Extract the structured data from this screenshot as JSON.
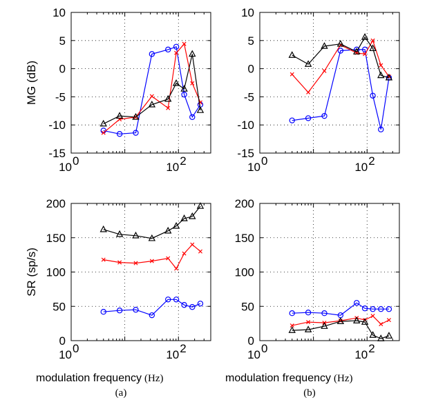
{
  "figure": {
    "x_label_main": "modulation frequency",
    "x_label_unit": "(Hz)",
    "captions": [
      "(a)",
      "(b)"
    ],
    "colors": {
      "blue": "#0000ff",
      "red": "#ff0000",
      "black": "#000000"
    },
    "markers": {
      "blue": "circle",
      "red": "x-cross",
      "black": "triangle"
    }
  },
  "chart_data": [
    {
      "type": "line",
      "panel": "(a)",
      "xscale": "log",
      "xlim": [
        1,
        400
      ],
      "ylim": [
        -15,
        10
      ],
      "ylabel": "MG (dB)",
      "yticks": [
        -15,
        -10,
        -5,
        0,
        5,
        10
      ],
      "xticks": [
        {
          "base": "10",
          "exp": "0"
        },
        {
          "base": "10",
          "exp": "2"
        }
      ],
      "grid": "dotted",
      "series": [
        {
          "color": "blue",
          "marker": "circle",
          "x": [
            4,
            8,
            16,
            32,
            64,
            91,
            128,
            181,
            256
          ],
          "y": [
            -11.0,
            -11.6,
            -11.4,
            2.6,
            3.4,
            3.9,
            -4.6,
            -8.6,
            -6.4
          ]
        },
        {
          "color": "red",
          "marker": "x",
          "x": [
            4,
            8,
            16,
            32,
            64,
            91,
            128,
            181,
            256
          ],
          "y": [
            -11.4,
            -9.0,
            -8.6,
            -4.9,
            -7.0,
            2.8,
            4.4,
            -2.6,
            -6.0
          ]
        },
        {
          "color": "black",
          "marker": "triangle",
          "x": [
            4,
            8,
            16,
            32,
            64,
            91,
            128,
            181,
            256
          ],
          "y": [
            -9.8,
            -8.4,
            -8.6,
            -6.4,
            -5.4,
            -2.6,
            -3.6,
            2.6,
            -7.4
          ]
        }
      ]
    },
    {
      "type": "line",
      "panel": "(b)",
      "xscale": "log",
      "xlim": [
        1,
        400
      ],
      "ylim": [
        -15,
        10
      ],
      "ylabel": "",
      "yticks": [
        -15,
        -10,
        -5,
        0,
        5,
        10
      ],
      "xticks": [
        {
          "base": "10",
          "exp": "0"
        },
        {
          "base": "10",
          "exp": "2"
        }
      ],
      "grid": "dotted",
      "series": [
        {
          "color": "blue",
          "marker": "circle",
          "x": [
            4,
            8,
            16,
            32,
            64,
            91,
            128,
            181,
            256
          ],
          "y": [
            -9.2,
            -8.8,
            -8.4,
            3.2,
            3.4,
            3.4,
            -4.8,
            -10.8,
            -1.6
          ]
        },
        {
          "color": "red",
          "marker": "x",
          "x": [
            4,
            8,
            16,
            32,
            64,
            91,
            128,
            181,
            256
          ],
          "y": [
            -1.0,
            -4.2,
            -0.4,
            4.2,
            2.8,
            2.6,
            5.0,
            0.6,
            -1.4
          ]
        },
        {
          "color": "black",
          "marker": "triangle",
          "x": [
            4,
            8,
            16,
            32,
            64,
            91,
            128,
            181,
            256
          ],
          "y": [
            2.4,
            0.8,
            4.0,
            4.4,
            3.0,
            5.6,
            3.6,
            -1.2,
            -1.6
          ]
        }
      ]
    },
    {
      "type": "line",
      "panel": "(a)",
      "xscale": "log",
      "xlim": [
        1,
        400
      ],
      "ylim": [
        0,
        200
      ],
      "ylabel": "SR (sp/s)",
      "yticks": [
        0,
        50,
        100,
        150,
        200
      ],
      "xticks": [
        {
          "base": "10",
          "exp": "0"
        },
        {
          "base": "10",
          "exp": "2"
        }
      ],
      "grid": "dotted",
      "series": [
        {
          "color": "blue",
          "marker": "circle",
          "x": [
            4,
            8,
            16,
            32,
            64,
            91,
            128,
            181,
            256
          ],
          "y": [
            42,
            44,
            45,
            37,
            60,
            60,
            52,
            49,
            54
          ]
        },
        {
          "color": "red",
          "marker": "x",
          "x": [
            4,
            8,
            16,
            32,
            64,
            91,
            128,
            181,
            256
          ],
          "y": [
            118,
            114,
            113,
            116,
            120,
            105,
            127,
            140,
            130
          ]
        },
        {
          "color": "black",
          "marker": "triangle",
          "x": [
            4,
            8,
            16,
            32,
            64,
            91,
            128,
            181,
            256
          ],
          "y": [
            162,
            155,
            153,
            149,
            160,
            167,
            178,
            181,
            196
          ]
        }
      ]
    },
    {
      "type": "line",
      "panel": "(b)",
      "xscale": "log",
      "xlim": [
        1,
        400
      ],
      "ylim": [
        0,
        200
      ],
      "ylabel": "",
      "yticks": [
        0,
        50,
        100,
        150,
        200
      ],
      "xticks": [
        {
          "base": "10",
          "exp": "0"
        },
        {
          "base": "10",
          "exp": "2"
        }
      ],
      "grid": "dotted",
      "series": [
        {
          "color": "blue",
          "marker": "circle",
          "x": [
            4,
            8,
            16,
            32,
            64,
            91,
            128,
            181,
            256
          ],
          "y": [
            40,
            41,
            40,
            37,
            55,
            47,
            46,
            46,
            46
          ]
        },
        {
          "color": "red",
          "marker": "x",
          "x": [
            4,
            8,
            16,
            32,
            64,
            91,
            128,
            181,
            256
          ],
          "y": [
            22,
            27,
            26,
            29,
            33,
            30,
            36,
            24,
            30
          ]
        },
        {
          "color": "black",
          "marker": "triangle",
          "x": [
            4,
            8,
            16,
            32,
            64,
            91,
            128,
            181,
            256
          ],
          "y": [
            15,
            16,
            21,
            28,
            29,
            27,
            8,
            3,
            7
          ]
        }
      ]
    }
  ]
}
